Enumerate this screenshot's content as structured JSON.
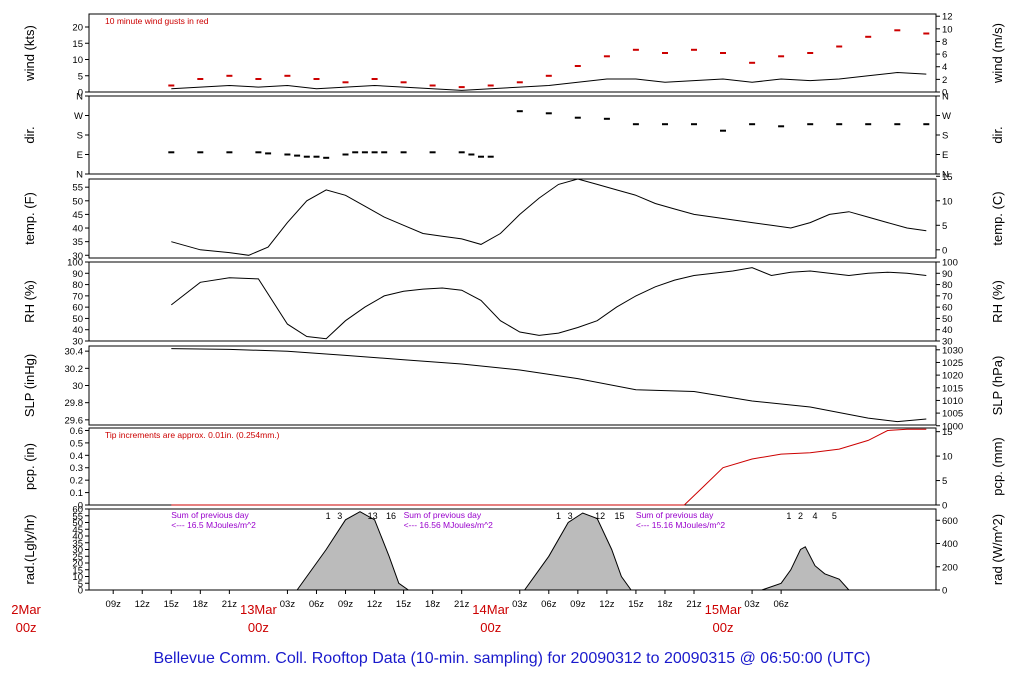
{
  "title": "Bellevue Comm. Coll. Rooftop Data (10-min. sampling) for 20090312  to  20090315 @ 06:50:00  (UTC)",
  "colors": {
    "line": "#000000",
    "red": "#cc0000",
    "purple": "#9900cc",
    "title": "#1a1acc"
  },
  "chart_data": [
    {
      "type": "line",
      "ylabel": "wind (kts)",
      "ylabel_right": "wind (m/s)",
      "ylim": [
        0,
        24
      ],
      "yticks": [
        0,
        5,
        10,
        15,
        20
      ],
      "right_ylim": [
        0,
        12.35
      ],
      "right_yticks": [
        0,
        2,
        4,
        6,
        8,
        10,
        12
      ],
      "annotation": "10  minute wind gusts in red",
      "series": [
        {
          "style": "line",
          "x": [
            0,
            3,
            6,
            9,
            12,
            15,
            18,
            21,
            24,
            27,
            30,
            33,
            36,
            39,
            42,
            45,
            48,
            51,
            54,
            57,
            60,
            63,
            66,
            69,
            72,
            75,
            78
          ],
          "y": [
            1,
            1.5,
            2,
            1.5,
            2,
            1,
            1.5,
            2,
            1.5,
            1,
            0.5,
            1,
            1.5,
            2,
            3,
            4,
            4,
            3,
            3.5,
            4,
            3,
            4,
            3.5,
            4,
            5,
            6,
            5.5
          ]
        },
        {
          "style": "markers",
          "color": "red",
          "x": [
            0,
            3,
            6,
            9,
            12,
            15,
            18,
            21,
            24,
            27,
            30,
            33,
            36,
            39,
            42,
            45,
            48,
            51,
            54,
            57,
            60,
            63,
            66,
            69,
            72,
            75,
            78
          ],
          "y": [
            2,
            4,
            5,
            4,
            5,
            4,
            3,
            4,
            3,
            2,
            1.5,
            2,
            3,
            5,
            8,
            11,
            13,
            12,
            13,
            12,
            9,
            11,
            12,
            14,
            17,
            19,
            18
          ]
        }
      ]
    },
    {
      "type": "scatter",
      "ylabel": "dir.",
      "ylabel_right": "dir.",
      "ylim": [
        0,
        360
      ],
      "ytick_values": [
        0,
        90,
        180,
        270,
        360
      ],
      "ytick_labels": [
        "N",
        "E",
        "S",
        "W",
        "N"
      ],
      "series": [
        {
          "style": "markers",
          "x": [
            0,
            3,
            6,
            9,
            10,
            12,
            13,
            14,
            15,
            16,
            18,
            19,
            20,
            21,
            22,
            24,
            27,
            30,
            31,
            32,
            33,
            36,
            39,
            42,
            45,
            48,
            51,
            54,
            57,
            60,
            63,
            66,
            69,
            72,
            75,
            78
          ],
          "y": [
            100,
            100,
            100,
            100,
            95,
            90,
            85,
            80,
            80,
            75,
            90,
            100,
            100,
            100,
            100,
            100,
            100,
            100,
            90,
            80,
            80,
            290,
            280,
            260,
            255,
            230,
            230,
            230,
            200,
            230,
            220,
            230,
            230,
            230,
            230,
            230
          ]
        }
      ]
    },
    {
      "type": "line",
      "ylabel": "temp. (F)",
      "ylabel_right": "temp. (C)",
      "ylim": [
        29,
        58
      ],
      "yticks": [
        30,
        35,
        40,
        45,
        50,
        55
      ],
      "right_ylim": [
        -1.67,
        14.44
      ],
      "right_yticks": [
        0,
        5,
        10,
        15
      ],
      "series": [
        {
          "style": "line",
          "x": [
            0,
            3,
            6,
            8,
            10,
            12,
            14,
            16,
            18,
            20,
            22,
            24,
            26,
            28,
            30,
            32,
            34,
            36,
            38,
            40,
            42,
            44,
            46,
            48,
            50,
            52,
            54,
            56,
            58,
            60,
            62,
            64,
            66,
            68,
            70,
            72,
            74,
            76,
            78
          ],
          "y": [
            35,
            32,
            31,
            30,
            33,
            42,
            50,
            54,
            52,
            48,
            44,
            41,
            38,
            37,
            36,
            34,
            38,
            45,
            51,
            56,
            58,
            56,
            54,
            52,
            49,
            47,
            45,
            44,
            43,
            42,
            41,
            40,
            42,
            45,
            46,
            44,
            42,
            40,
            39
          ]
        }
      ]
    },
    {
      "type": "line",
      "ylabel": "RH (%)",
      "ylabel_right": "RH (%)",
      "ylim": [
        30,
        100
      ],
      "yticks": [
        30,
        40,
        50,
        60,
        70,
        80,
        90,
        100
      ],
      "series": [
        {
          "style": "line",
          "x": [
            0,
            3,
            6,
            9,
            12,
            14,
            16,
            18,
            20,
            22,
            24,
            26,
            28,
            30,
            32,
            34,
            36,
            38,
            40,
            42,
            44,
            46,
            48,
            50,
            52,
            54,
            56,
            58,
            60,
            62,
            64,
            66,
            68,
            70,
            72,
            74,
            76,
            78
          ],
          "y": [
            62,
            82,
            86,
            85,
            45,
            34,
            32,
            48,
            60,
            70,
            74,
            76,
            77,
            75,
            66,
            48,
            38,
            35,
            37,
            42,
            48,
            60,
            70,
            78,
            84,
            88,
            90,
            92,
            95,
            88,
            91,
            92,
            90,
            88,
            90,
            91,
            90,
            88
          ]
        }
      ]
    },
    {
      "type": "line",
      "ylabel": "SLP (inHg)",
      "ylabel_right": "SLP (hPa)",
      "ylim": [
        29.54,
        30.46
      ],
      "yticks": [
        29.6,
        29.8,
        30.0,
        30.2,
        30.4
      ],
      "right_ylim": [
        1000.3,
        1031.5
      ],
      "right_yticks": [
        1000,
        1005,
        1010,
        1015,
        1020,
        1025,
        1030
      ],
      "series": [
        {
          "style": "line",
          "x": [
            0,
            6,
            12,
            18,
            24,
            30,
            36,
            42,
            48,
            54,
            60,
            66,
            72,
            75,
            78
          ],
          "y": [
            30.43,
            30.42,
            30.4,
            30.35,
            30.3,
            30.25,
            30.18,
            30.08,
            29.95,
            29.93,
            29.82,
            29.75,
            29.62,
            29.58,
            29.61
          ]
        }
      ]
    },
    {
      "type": "line",
      "ylabel": "pcp. (in)",
      "ylabel_right": "pcp. (mm)",
      "ylim": [
        0,
        0.62
      ],
      "yticks": [
        0,
        0.1,
        0.2,
        0.3,
        0.4,
        0.5,
        0.6
      ],
      "right_ylim": [
        0,
        15.75
      ],
      "right_yticks": [
        0,
        5,
        10,
        15
      ],
      "annotation": "Tip increments are approx. 0.01in. (0.254mm.)",
      "series": [
        {
          "style": "line",
          "color": "red",
          "x": [
            0,
            53,
            55,
            57,
            60,
            63,
            66,
            69,
            72,
            74,
            76,
            78
          ],
          "y": [
            0,
            0,
            0.15,
            0.3,
            0.37,
            0.41,
            0.42,
            0.45,
            0.52,
            0.6,
            0.61,
            0.61
          ]
        }
      ]
    },
    {
      "type": "area",
      "ylabel": "rad.(Lgly/hr)",
      "ylabel_right": "rad (W/m^2)",
      "ylim": [
        0,
        60
      ],
      "yticks": [
        0,
        5,
        10,
        15,
        20,
        25,
        30,
        35,
        40,
        45,
        50,
        55,
        60
      ],
      "right_ylim": [
        0,
        697
      ],
      "right_yticks": [
        0,
        200,
        400,
        600
      ],
      "annotations": [
        {
          "x": 0.0,
          "lines": [
            "Sum of previous day",
            "<--- 16.5 MJoules/m^2"
          ]
        },
        {
          "x": 24.0,
          "lines": [
            "Sum of previous day",
            "<--- 16.56 MJoules/m^2"
          ]
        },
        {
          "x": 48.0,
          "lines": [
            "Sum of previous day",
            "<--- 15.16 MJoules/m^2"
          ]
        }
      ],
      "hour_labels": [
        {
          "x": 16.2,
          "text": "1"
        },
        {
          "x": 17.4,
          "text": "3"
        },
        {
          "x": 20.8,
          "text": "13"
        },
        {
          "x": 22.7,
          "text": "16"
        },
        {
          "x": 40.0,
          "text": "1"
        },
        {
          "x": 41.2,
          "text": "3"
        },
        {
          "x": 44.3,
          "text": "12"
        },
        {
          "x": 46.3,
          "text": "15"
        },
        {
          "x": 63.8,
          "text": "1"
        },
        {
          "x": 65.0,
          "text": "2"
        },
        {
          "x": 66.5,
          "text": "4"
        },
        {
          "x": 68.5,
          "text": "5"
        }
      ],
      "series": [
        {
          "style": "area",
          "x": [
            13,
            16,
            18,
            19.5,
            21,
            22.5,
            23.5,
            24.5,
            36.5,
            39,
            41,
            42.5,
            44,
            45.5,
            46.5,
            47.5,
            61,
            63,
            64,
            65,
            65.5,
            66.5,
            67.5,
            69,
            70
          ],
          "y": [
            0,
            30,
            52,
            58,
            52,
            25,
            5,
            0,
            0,
            25,
            50,
            57,
            53,
            30,
            10,
            0,
            0,
            5,
            15,
            30,
            32,
            18,
            12,
            8,
            0
          ]
        }
      ]
    }
  ],
  "time_axis": {
    "xlim": [
      -8.5,
      79
    ],
    "hour_ticks": [
      {
        "x": -6,
        "text": "09z"
      },
      {
        "x": -3,
        "text": "12z"
      },
      {
        "x": 0,
        "text": "15z"
      },
      {
        "x": 3,
        "text": "18z"
      },
      {
        "x": 6,
        "text": "21z"
      },
      {
        "x": 12,
        "text": "03z"
      },
      {
        "x": 15,
        "text": "06z"
      },
      {
        "x": 18,
        "text": "09z"
      },
      {
        "x": 21,
        "text": "12z"
      },
      {
        "x": 24,
        "text": "15z"
      },
      {
        "x": 27,
        "text": "18z"
      },
      {
        "x": 30,
        "text": "21z"
      },
      {
        "x": 36,
        "text": "03z"
      },
      {
        "x": 39,
        "text": "06z"
      },
      {
        "x": 42,
        "text": "09z"
      },
      {
        "x": 45,
        "text": "12z"
      },
      {
        "x": 48,
        "text": "15z"
      },
      {
        "x": 51,
        "text": "18z"
      },
      {
        "x": 54,
        "text": "21z"
      },
      {
        "x": 60,
        "text": "03z"
      },
      {
        "x": 63,
        "text": "06z"
      }
    ],
    "date_labels": [
      {
        "x": -15,
        "line1": "2Mar",
        "line2": "00z"
      },
      {
        "x": 9,
        "line1": "13Mar",
        "line2": "00z"
      },
      {
        "x": 33,
        "line1": "14Mar",
        "line2": "00z"
      },
      {
        "x": 57,
        "line1": "15Mar",
        "line2": "00z"
      }
    ]
  }
}
